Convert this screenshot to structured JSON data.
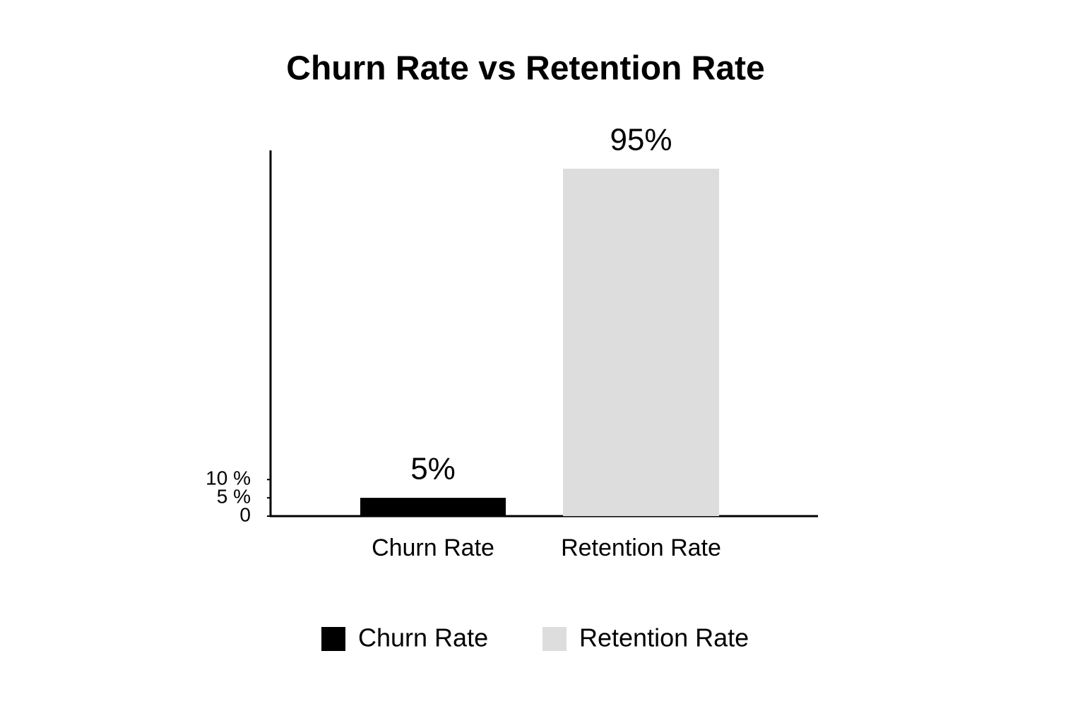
{
  "chart_data": {
    "type": "bar",
    "title": "Churn Rate vs Retention Rate",
    "categories": [
      "Churn Rate",
      "Retention Rate"
    ],
    "values": [
      5,
      95
    ],
    "value_labels": [
      "5%",
      "95%"
    ],
    "colors": [
      "#000000",
      "#dddddd"
    ],
    "ylim": [
      0,
      100
    ],
    "yticks": [
      0,
      {
        "value": 5,
        "label": "5 %"
      },
      {
        "value": 10,
        "label": "10 %"
      }
    ],
    "legend": "bottom"
  }
}
